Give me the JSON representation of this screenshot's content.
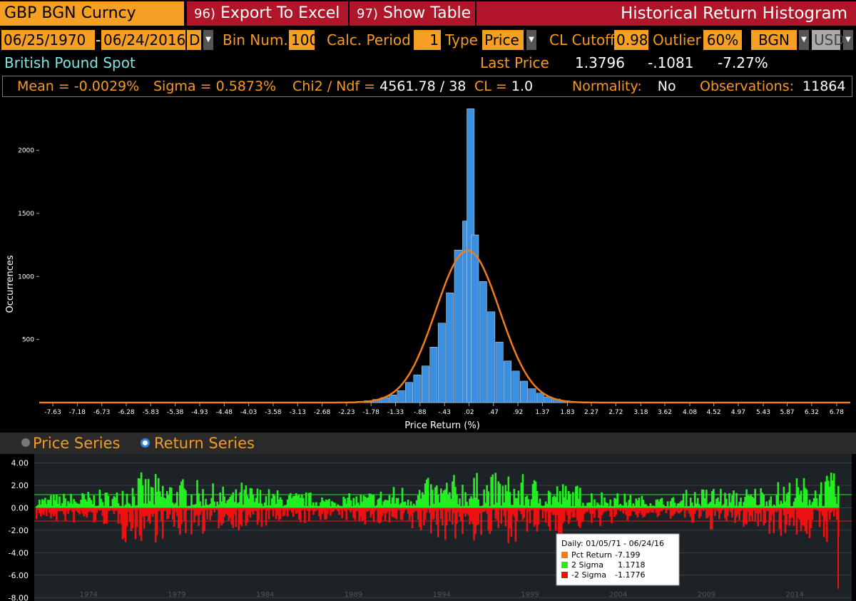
{
  "header": {
    "ticker": "GBP BGN Curncy",
    "export_num": "96)",
    "export_label": "Export To Excel",
    "table_num": "97)",
    "table_label": "Show Table",
    "title": "Historical Return Histogram"
  },
  "controls": {
    "start_date": "06/25/1970",
    "date_sep": "-",
    "end_date": "06/24/2016",
    "periodicity": "D",
    "bin_label": "Bin Num.",
    "bin_value": "100",
    "calc_label": "Calc. Period",
    "calc_value": "1",
    "type_label": "Type",
    "type_value": "Price",
    "cl_label": "CL Cutoff",
    "cl_value": "0.98",
    "outlier_label": "Outlier",
    "outlier_value": "60%",
    "source": "BGN",
    "currency": "USD"
  },
  "security": {
    "name": "British Pound Spot",
    "last_label": "Last Price",
    "last_price": "1.3796",
    "change": "-.1081",
    "pct_change": "-7.27%"
  },
  "stats": {
    "mean_label": "Mean =",
    "mean_value": "-0.0029%",
    "sigma_label": "Sigma =",
    "sigma_value": "0.5873%",
    "chi_label": "Chi2 / Ndf =",
    "chi_value": "4561.78",
    "ndf_value": "/ 38",
    "cl_label": "CL =",
    "cl_value": "1.0",
    "norm_label": "Normality:",
    "norm_value": "No",
    "obs_label": "Observations:",
    "obs_value": "11864"
  },
  "tabs": {
    "price_series": "Price Series",
    "return_series": "Return Series"
  },
  "chart_data": [
    {
      "type": "bar",
      "xlabel": "Price Return (%)",
      "ylabel": "Occurrences",
      "x_ticks": [
        "-7.63",
        "-7.18",
        "-6.73",
        "-6.28",
        "-5.83",
        "-5.38",
        "-4.93",
        "-4.48",
        "-4.03",
        "-3.58",
        "-3.13",
        "-2.68",
        "-2.23",
        "-1.78",
        "-1.33",
        "-.88",
        "-.43",
        ".02",
        ".47",
        ".92",
        "1.37",
        "1.83",
        "2.27",
        "2.72",
        "3.18",
        "3.62",
        "4.08",
        "4.52",
        "4.97",
        "5.43",
        "5.87",
        "6.32",
        "6.78"
      ],
      "y_ticks": [
        500,
        1000,
        1500,
        2000
      ],
      "ylim": [
        0,
        2400
      ],
      "xlim": [
        -7.88,
        7.03
      ],
      "bin_width": 0.149,
      "bars": [
        {
          "x": -2.43,
          "y": 2
        },
        {
          "x": -2.28,
          "y": 4
        },
        {
          "x": -2.13,
          "y": 6
        },
        {
          "x": -1.98,
          "y": 10
        },
        {
          "x": -1.83,
          "y": 15
        },
        {
          "x": -1.68,
          "y": 25
        },
        {
          "x": -1.53,
          "y": 40
        },
        {
          "x": -1.38,
          "y": 60
        },
        {
          "x": -1.23,
          "y": 95
        },
        {
          "x": -1.08,
          "y": 160
        },
        {
          "x": -0.93,
          "y": 220
        },
        {
          "x": -0.78,
          "y": 290
        },
        {
          "x": -0.63,
          "y": 440
        },
        {
          "x": -0.48,
          "y": 630
        },
        {
          "x": -0.33,
          "y": 870
        },
        {
          "x": -0.18,
          "y": 1210
        },
        {
          "x": -0.03,
          "y": 1440
        },
        {
          "x": 0.05,
          "y": 2330
        },
        {
          "x": 0.13,
          "y": 1330
        },
        {
          "x": 0.28,
          "y": 960
        },
        {
          "x": 0.43,
          "y": 720
        },
        {
          "x": 0.58,
          "y": 480
        },
        {
          "x": 0.73,
          "y": 330
        },
        {
          "x": 0.88,
          "y": 250
        },
        {
          "x": 1.03,
          "y": 170
        },
        {
          "x": 1.18,
          "y": 110
        },
        {
          "x": 1.33,
          "y": 75
        },
        {
          "x": 1.48,
          "y": 45
        },
        {
          "x": 1.63,
          "y": 28
        },
        {
          "x": 1.78,
          "y": 15
        },
        {
          "x": 1.93,
          "y": 8
        },
        {
          "x": 2.08,
          "y": 4
        }
      ],
      "fit": {
        "mean": -0.0029,
        "sigma": 0.5873,
        "peak": 1205,
        "color": "#f07d1a"
      },
      "bar_color": "#3a8fe0"
    },
    {
      "type": "bar",
      "title": "Daily: 01/05/71 - 06/24/16",
      "y_ticks": [
        "4.00",
        "2.00",
        "0.00",
        "-2.00",
        "-4.00",
        "-6.00",
        "-8.00"
      ],
      "ylim": [
        -8.3,
        4.8
      ],
      "x_ticks": [
        "1974",
        "1979",
        "1984",
        "1989",
        "1994",
        "1999",
        "2004",
        "2009",
        "2014"
      ],
      "series": [
        {
          "name": "Pct Return",
          "value": "-7.199",
          "color": "#f07d1a"
        },
        {
          "name": "2 Sigma",
          "value": "1.1718",
          "color": "#22ee22"
        },
        {
          "name": "-2 Sigma",
          "value": "-1.1776",
          "color": "#ee1111"
        }
      ],
      "sigma_up": 1.1718,
      "sigma_down": -1.1776,
      "last_return": -7.199
    }
  ]
}
